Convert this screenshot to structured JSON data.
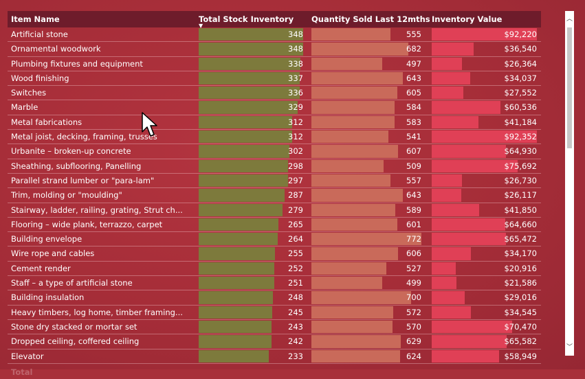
{
  "colors": {
    "background": "#a8303a",
    "header": "#6e1c2b",
    "stock_bar": "#7d7a3c",
    "qty_bar": "#c96a5a",
    "value_bar": "#e04056"
  },
  "table": {
    "headers": {
      "name": "Item Name",
      "stock": "Total Stock Inventory",
      "qty": "Quantity Sold Last 12mths",
      "value": "Inventory Value"
    },
    "sort_icon": "sort-descending-icon",
    "sort_glyph": "▼",
    "rows": [
      {
        "name": "Artificial stone",
        "stock": "348",
        "qty": "555",
        "value": "$92,220"
      },
      {
        "name": "Ornamental woodwork",
        "stock": "348",
        "qty": "682",
        "value": "$36,540"
      },
      {
        "name": "Plumbing fixtures and equipment",
        "stock": "338",
        "qty": "497",
        "value": "$26,364"
      },
      {
        "name": "Wood finishing",
        "stock": "337",
        "qty": "643",
        "value": "$34,037"
      },
      {
        "name": "Switches",
        "stock": "336",
        "qty": "605",
        "value": "$27,552"
      },
      {
        "name": "Marble",
        "stock": "329",
        "qty": "584",
        "value": "$60,536"
      },
      {
        "name": "Metal fabrications",
        "stock": "312",
        "qty": "583",
        "value": "$41,184"
      },
      {
        "name": "Metal joist, decking, framing, trusses",
        "stock": "312",
        "qty": "541",
        "value": "$92,352"
      },
      {
        "name": "Urbanite – broken-up concrete",
        "stock": "302",
        "qty": "607",
        "value": "$64,930"
      },
      {
        "name": "Sheathing, subflooring, Panelling",
        "stock": "298",
        "qty": "509",
        "value": "$75,692"
      },
      {
        "name": "Parallel strand lumber or \"para-lam\"",
        "stock": "297",
        "qty": "557",
        "value": "$26,730"
      },
      {
        "name": "Trim, molding or \"moulding\"",
        "stock": "287",
        "qty": "643",
        "value": "$26,117"
      },
      {
        "name": "Stairway, ladder, railing, grating, Strut ch...",
        "stock": "279",
        "qty": "589",
        "value": "$41,850"
      },
      {
        "name": "Flooring – wide plank, terrazzo, carpet",
        "stock": "265",
        "qty": "601",
        "value": "$64,660"
      },
      {
        "name": "Building envelope",
        "stock": "264",
        "qty": "772",
        "value": "$65,472"
      },
      {
        "name": "Wire rope and cables",
        "stock": "255",
        "qty": "606",
        "value": "$34,170"
      },
      {
        "name": "Cement render",
        "stock": "252",
        "qty": "527",
        "value": "$20,916"
      },
      {
        "name": "Staff – a type of artificial stone",
        "stock": "251",
        "qty": "499",
        "value": "$21,586"
      },
      {
        "name": "Building insulation",
        "stock": "248",
        "qty": "700",
        "value": "$29,016"
      },
      {
        "name": "Heavy timbers, log home, timber framing...",
        "stock": "245",
        "qty": "572",
        "value": "$34,545"
      },
      {
        "name": "Stone dry stacked or mortar set",
        "stock": "243",
        "qty": "570",
        "value": "$70,470"
      },
      {
        "name": "Dropped ceiling, coffered ceiling",
        "stock": "242",
        "qty": "629",
        "value": "$65,582"
      },
      {
        "name": "Elevator",
        "stock": "233",
        "qty": "624",
        "value": "$58,949"
      }
    ],
    "total": {
      "label": "Total",
      "stock": "",
      "qty": "",
      "value": ""
    }
  },
  "scrollbar": {
    "up_icon": "scroll-up-arrow-icon",
    "up_glyph": "︿",
    "down_icon": "scroll-down-arrow-icon",
    "down_glyph": "﹀"
  }
}
